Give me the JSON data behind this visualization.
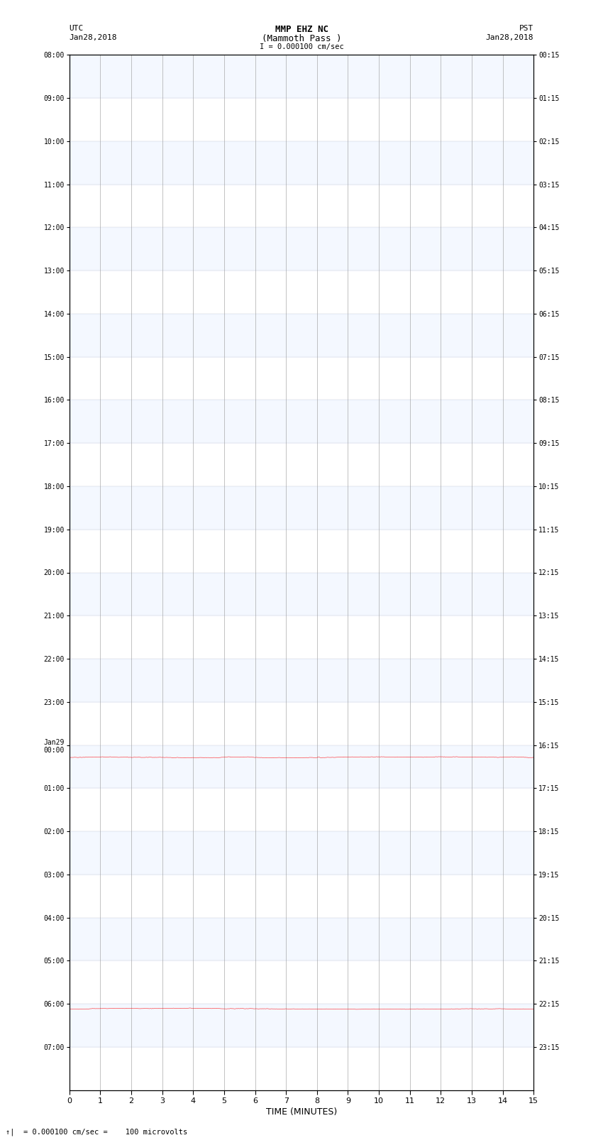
{
  "title_line1": "MMP EHZ NC",
  "title_line2": "(Mammoth Pass )",
  "title_line3": "I = 0.000100 cm/sec",
  "xlabel": "TIME (MINUTES)",
  "footer": "= 0.000100 cm/sec =    100 microvolts",
  "utc_labels": [
    "08:00",
    "09:00",
    "10:00",
    "11:00",
    "12:00",
    "13:00",
    "14:00",
    "15:00",
    "16:00",
    "17:00",
    "18:00",
    "19:00",
    "20:00",
    "21:00",
    "22:00",
    "23:00",
    "Jan29\n00:00",
    "01:00",
    "02:00",
    "03:00",
    "04:00",
    "05:00",
    "06:00",
    "07:00"
  ],
  "pst_labels": [
    "00:15",
    "01:15",
    "02:15",
    "03:15",
    "04:15",
    "05:15",
    "06:15",
    "07:15",
    "08:15",
    "09:15",
    "10:15",
    "11:15",
    "12:15",
    "13:15",
    "14:15",
    "15:15",
    "16:15",
    "17:15",
    "18:15",
    "19:15",
    "20:15",
    "21:15",
    "22:15",
    "23:15"
  ],
  "n_traces": 24,
  "n_lines_per_trace": 4,
  "trace_colors": [
    "black",
    "red",
    "blue",
    "green"
  ],
  "x_min": 0,
  "x_max": 15,
  "x_ticks": [
    0,
    1,
    2,
    3,
    4,
    5,
    6,
    7,
    8,
    9,
    10,
    11,
    12,
    13,
    14,
    15
  ],
  "background_color": "white",
  "left_bg_color": "#e8e8ff",
  "right_bg_color": "white"
}
